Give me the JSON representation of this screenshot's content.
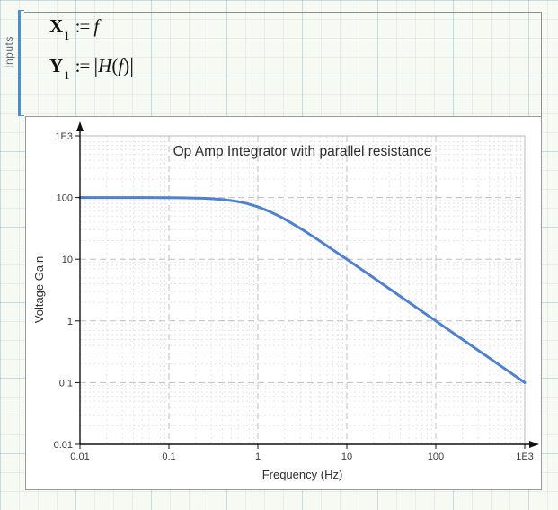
{
  "worksheet": {
    "area": {
      "label": "Inputs"
    },
    "math_regions": [
      {
        "var": "X",
        "sub": "1",
        "op": ":=",
        "expr": "f"
      },
      {
        "var": "Y",
        "sub": "1",
        "op": ":=",
        "bar_l": "|",
        "fn": "H",
        "par_l": "(",
        "arg": "f",
        "par_r": ")",
        "bar_r": "|"
      }
    ]
  },
  "chart_data": {
    "type": "line",
    "title": "Op Amp Integrator with parallel resistance",
    "xlabel": "Frequency (Hz)",
    "ylabel": "Voltage Gain",
    "x_scale": "log",
    "y_scale": "log",
    "xlim": [
      0.01,
      1000
    ],
    "ylim": [
      0.01,
      1000
    ],
    "x_tick_labels": [
      "0.01",
      "0.1",
      "1",
      "10",
      "100",
      "1E3"
    ],
    "y_tick_labels": [
      "1E3",
      "100",
      "10",
      "1",
      "0.1",
      "0.01"
    ],
    "grid": {
      "major_color": "#bfbfbf",
      "minor_color": "#e5e5e5",
      "major_dash": "7 4",
      "minor_dash": "2 3"
    },
    "legend": "none",
    "axis_color": "#111111",
    "series": [
      {
        "name": "|H(f)|",
        "color": "#4f81d1",
        "width": 3,
        "x": [
          0.01,
          0.0178,
          0.0316,
          0.0562,
          0.1,
          0.133,
          0.178,
          0.237,
          0.316,
          0.422,
          0.562,
          0.75,
          1,
          1.33,
          1.78,
          2.37,
          3.16,
          4.22,
          5.62,
          7.5,
          10,
          17.8,
          31.6,
          56.2,
          100,
          178,
          316,
          562,
          1000
        ],
        "y": [
          100,
          100,
          99.95,
          99.84,
          99.5,
          99.12,
          98.46,
          97.31,
          95.35,
          92.13,
          87.16,
          80.01,
          70.71,
          59.99,
          49.03,
          38.86,
          30.15,
          23.07,
          17.51,
          13.22,
          9.95,
          5.62,
          3.16,
          1.78,
          1.0,
          0.562,
          0.316,
          0.178,
          0.1
        ]
      }
    ]
  }
}
